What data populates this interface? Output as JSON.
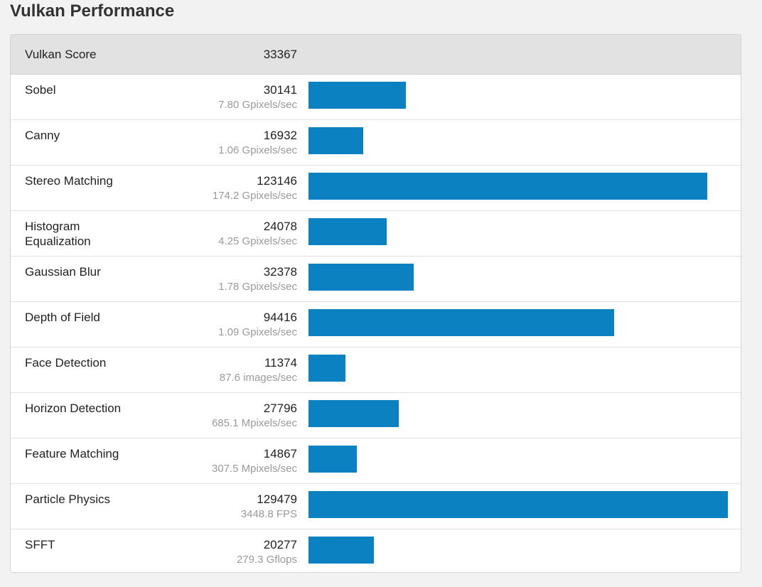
{
  "page": {
    "title": "Vulkan Performance"
  },
  "colors": {
    "bar": "#0c81c1",
    "header_row": "#e2e2e3",
    "secondary_text": "#9a9a9a"
  },
  "summary": {
    "label": "Vulkan Score",
    "value": "33367"
  },
  "workloads": [
    {
      "name": "Sobel",
      "score": "30141",
      "rate": "7.80 Gpixels/sec",
      "value": 30141
    },
    {
      "name": "Canny",
      "score": "16932",
      "rate": "1.06 Gpixels/sec",
      "value": 16932
    },
    {
      "name": "Stereo Matching",
      "score": "123146",
      "rate": "174.2 Gpixels/sec",
      "value": 123146
    },
    {
      "name": "Histogram Equalization",
      "score": "24078",
      "rate": "4.25 Gpixels/sec",
      "value": 24078
    },
    {
      "name": "Gaussian Blur",
      "score": "32378",
      "rate": "1.78 Gpixels/sec",
      "value": 32378
    },
    {
      "name": "Depth of Field",
      "score": "94416",
      "rate": "1.09 Gpixels/sec",
      "value": 94416
    },
    {
      "name": "Face Detection",
      "score": "11374",
      "rate": "87.6 images/sec",
      "value": 11374
    },
    {
      "name": "Horizon Detection",
      "score": "27796",
      "rate": "685.1 Mpixels/sec",
      "value": 27796
    },
    {
      "name": "Feature Matching",
      "score": "14867",
      "rate": "307.5 Mpixels/sec",
      "value": 14867
    },
    {
      "name": "Particle Physics",
      "score": "129479",
      "rate": "3448.8 FPS",
      "value": 129479
    },
    {
      "name": "SFFT",
      "score": "20277",
      "rate": "279.3 Gflops",
      "value": 20277
    }
  ]
}
